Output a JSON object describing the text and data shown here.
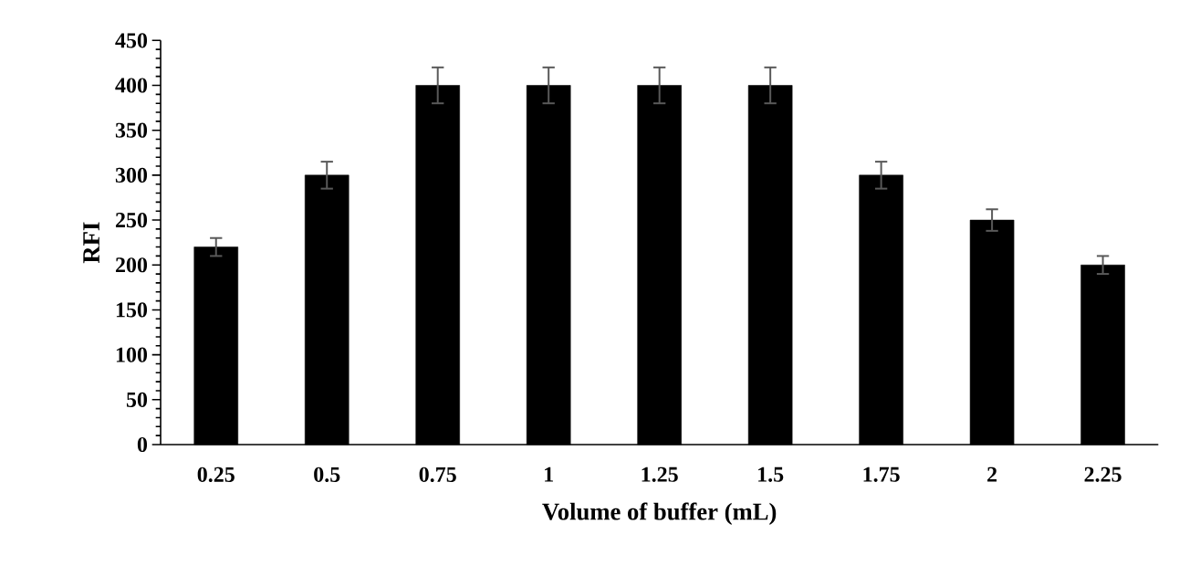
{
  "chart_data": {
    "type": "bar",
    "xlabel": "Volume of buffer (mL)",
    "ylabel": "RFI",
    "categories": [
      "0.25",
      "0.5",
      "0.75",
      "1",
      "1.25",
      "1.5",
      "1.75",
      "2",
      "2.25"
    ],
    "values": [
      220,
      300,
      400,
      400,
      400,
      400,
      300,
      250,
      200
    ],
    "errors": [
      10,
      15,
      20,
      20,
      20,
      20,
      15,
      12,
      10
    ],
    "color": "#000000",
    "ylim": [
      0,
      450
    ],
    "yticks": [
      0,
      50,
      100,
      150,
      200,
      250,
      300,
      350,
      400,
      450
    ]
  }
}
